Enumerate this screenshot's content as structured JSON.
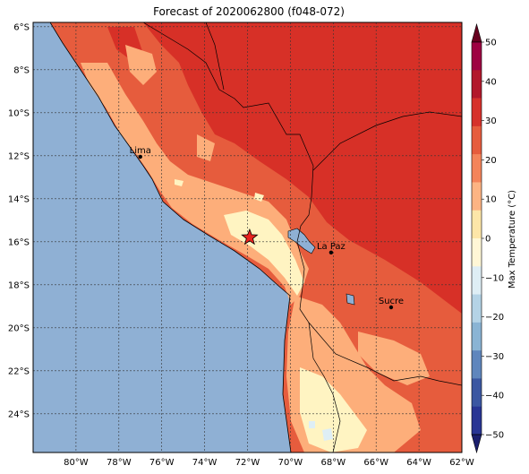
{
  "title": "Forecast of 2020062800 (f048-072)",
  "map": {
    "lon_range": [
      -82,
      -62
    ],
    "lat_range": [
      -25.8,
      -5.8
    ],
    "lon_ticks": [
      "80°W",
      "78°W",
      "76°W",
      "74°W",
      "72°W",
      "70°W",
      "68°W",
      "66°W",
      "64°W",
      "62°W"
    ],
    "lat_ticks": [
      "6°S",
      "8°S",
      "10°S",
      "12°S",
      "14°S",
      "16°S",
      "18°S",
      "20°S",
      "22°S",
      "24°S"
    ],
    "grid": true,
    "ocean_color": "#8fb0d4"
  },
  "cities": [
    {
      "name": "Lima",
      "lon": -77.0,
      "lat": -12.05
    },
    {
      "name": "La Paz",
      "lon": -68.1,
      "lat": -16.5
    },
    {
      "name": "Sucre",
      "lon": -65.3,
      "lat": -19.05
    }
  ],
  "marker": {
    "symbol": "star",
    "lon": -71.9,
    "lat": -15.8,
    "color": "#e8231f"
  },
  "colorbar": {
    "label": "Max Temperature (°C)",
    "ticks": [
      "50",
      "40",
      "30",
      "20",
      "10",
      "0",
      "−10",
      "−20",
      "−30",
      "−40",
      "−50"
    ],
    "colors": [
      "#67001f",
      "#9e0142",
      "#b2182b",
      "#d6312b",
      "#e65c3d",
      "#f4845a",
      "#fdb483",
      "#fde6a8",
      "#fff7d6",
      "#deeef5",
      "#b4d3e6",
      "#8ab4d4",
      "#5f86bd",
      "#3b57a2",
      "#283594",
      "#1b1f6e"
    ]
  }
}
